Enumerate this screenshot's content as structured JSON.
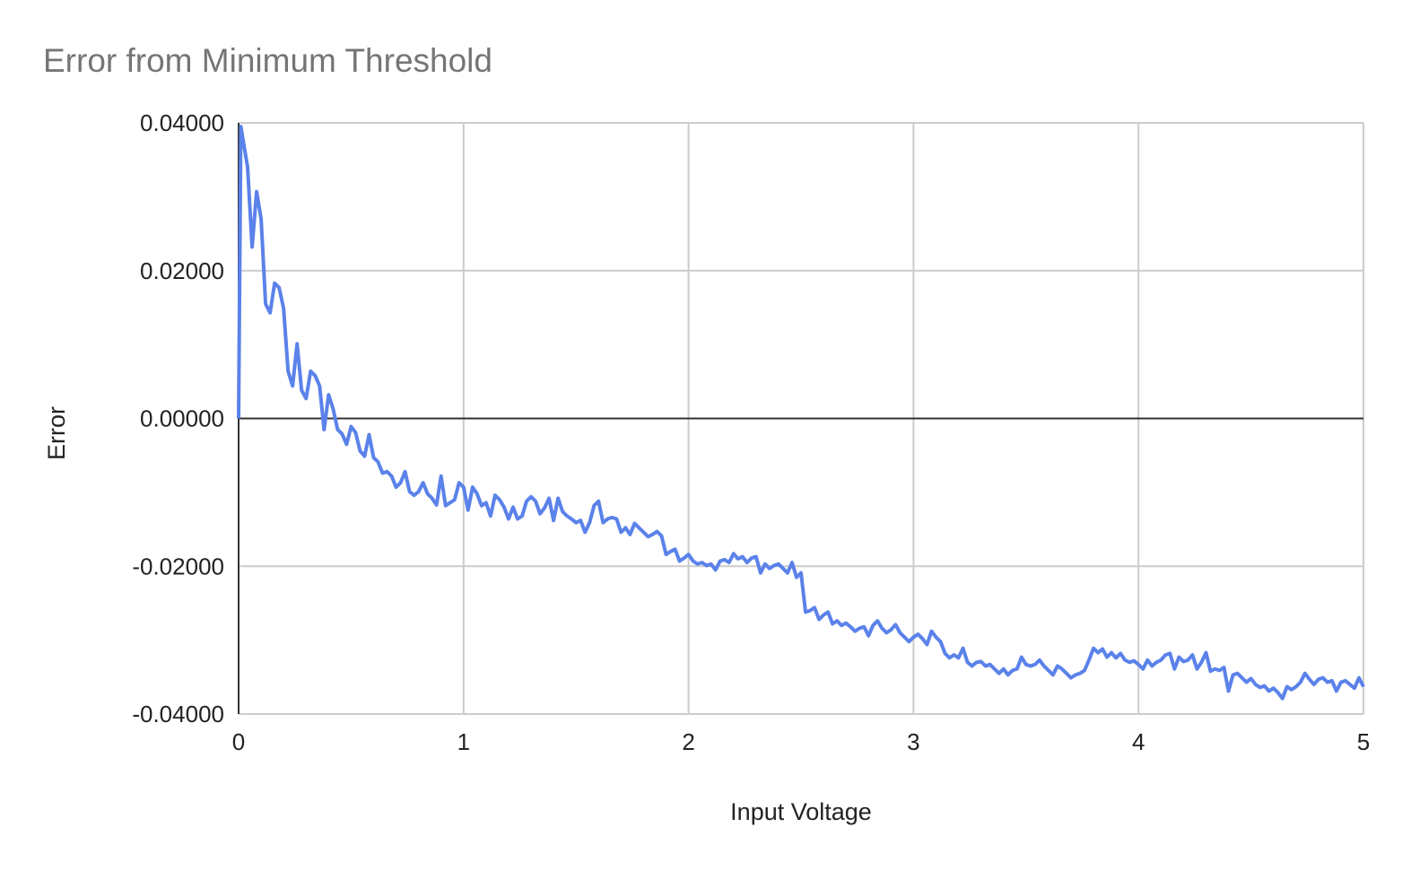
{
  "chart_data": {
    "type": "line",
    "title": "Error from Minimum Threshold",
    "x_label": "Input Voltage",
    "y_label": "Error",
    "xlim": [
      0,
      5
    ],
    "xticks": [
      0,
      1,
      2,
      3,
      4,
      5
    ],
    "ylim": [
      -0.04,
      0.04
    ],
    "yticks": [
      {
        "value": -0.04,
        "label": "-0.04000"
      },
      {
        "value": -0.02,
        "label": "-0.02000"
      },
      {
        "value": 0,
        "label": "0.00000"
      },
      {
        "value": 0.02,
        "label": "0.02000"
      },
      {
        "value": 0.04,
        "label": "0.04000"
      }
    ],
    "grid": true,
    "x": [
      0,
      0.01,
      0.04,
      0.06,
      0.08,
      0.1,
      0.12,
      0.14,
      0.16,
      0.18,
      0.2,
      0.22,
      0.24,
      0.26,
      0.28,
      0.3,
      0.32,
      0.34,
      0.36,
      0.38,
      0.4,
      0.42,
      0.44,
      0.46,
      0.48,
      0.5,
      0.52,
      0.54,
      0.56,
      0.58,
      0.6,
      0.62,
      0.64,
      0.66,
      0.68,
      0.7,
      0.72,
      0.74,
      0.76,
      0.78,
      0.8,
      0.82,
      0.84,
      0.86,
      0.88,
      0.9,
      0.92,
      0.96,
      0.98,
      1.0,
      1.02,
      1.04,
      1.06,
      1.08,
      1.1,
      1.12,
      1.14,
      1.16,
      1.18,
      1.2,
      1.22,
      1.24,
      1.26,
      1.28,
      1.3,
      1.32,
      1.34,
      1.36,
      1.38,
      1.4,
      1.42,
      1.44,
      1.46,
      1.48,
      1.5,
      1.52,
      1.54,
      1.56,
      1.58,
      1.6,
      1.62,
      1.64,
      1.66,
      1.68,
      1.7,
      1.72,
      1.74,
      1.76,
      1.78,
      1.8,
      1.82,
      1.84,
      1.86,
      1.88,
      1.9,
      1.92,
      1.94,
      1.96,
      1.98,
      2.0,
      2.02,
      2.04,
      2.06,
      2.08,
      2.1,
      2.12,
      2.14,
      2.16,
      2.18,
      2.2,
      2.22,
      2.24,
      2.26,
      2.28,
      2.3,
      2.32,
      2.34,
      2.36,
      2.38,
      2.4,
      2.42,
      2.44,
      2.46,
      2.48,
      2.5,
      2.52,
      2.54,
      2.56,
      2.58,
      2.6,
      2.62,
      2.64,
      2.66,
      2.68,
      2.7,
      2.72,
      2.74,
      2.76,
      2.78,
      2.8,
      2.82,
      2.84,
      2.86,
      2.88,
      2.9,
      2.92,
      2.94,
      2.96,
      2.98,
      3.0,
      3.02,
      3.04,
      3.06,
      3.08,
      3.1,
      3.12,
      3.14,
      3.16,
      3.18,
      3.2,
      3.22,
      3.24,
      3.26,
      3.28,
      3.3,
      3.32,
      3.34,
      3.36,
      3.38,
      3.4,
      3.42,
      3.44,
      3.46,
      3.48,
      3.5,
      3.52,
      3.54,
      3.56,
      3.58,
      3.6,
      3.62,
      3.64,
      3.66,
      3.68,
      3.7,
      3.72,
      3.74,
      3.76,
      3.78,
      3.8,
      3.82,
      3.84,
      3.86,
      3.88,
      3.9,
      3.92,
      3.94,
      3.96,
      3.98,
      4.0,
      4.02,
      4.04,
      4.06,
      4.08,
      4.1,
      4.12,
      4.14,
      4.16,
      4.18,
      4.2,
      4.22,
      4.24,
      4.26,
      4.28,
      4.3,
      4.32,
      4.34,
      4.36,
      4.38,
      4.4,
      4.42,
      4.44,
      4.46,
      4.48,
      4.5,
      4.52,
      4.54,
      4.56,
      4.58,
      4.6,
      4.62,
      4.64,
      4.66,
      4.68,
      4.7,
      4.72,
      4.74,
      4.76,
      4.78,
      4.8,
      4.82,
      4.84,
      4.86,
      4.88,
      4.9,
      4.92,
      4.94,
      4.96,
      4.98,
      5.0
    ],
    "series": [
      {
        "name": "Error",
        "color": "#5b82ea",
        "values": [
          0,
          0.0395,
          0.034,
          0.0232,
          0.0307,
          0.027,
          0.0155,
          0.0143,
          0.0183,
          0.0177,
          0.0149,
          0.0064,
          0.0044,
          0.0101,
          0.0038,
          0.0027,
          0.0064,
          0.0058,
          0.0044,
          -0.0015,
          0.0032,
          0.0013,
          -0.0015,
          -0.0021,
          -0.0035,
          -0.0011,
          -0.0019,
          -0.0044,
          -0.0051,
          -0.0022,
          -0.0053,
          -0.0059,
          -0.0074,
          -0.0072,
          -0.0078,
          -0.0093,
          -0.0087,
          -0.0072,
          -0.0099,
          -0.0104,
          -0.0099,
          -0.0087,
          -0.0102,
          -0.0108,
          -0.0117,
          -0.0078,
          -0.0118,
          -0.011,
          -0.0087,
          -0.0093,
          -0.0124,
          -0.0093,
          -0.0102,
          -0.0118,
          -0.0114,
          -0.0132,
          -0.0104,
          -0.011,
          -0.012,
          -0.0136,
          -0.012,
          -0.0136,
          -0.0132,
          -0.0112,
          -0.0106,
          -0.0112,
          -0.0129,
          -0.0121,
          -0.0108,
          -0.0138,
          -0.0108,
          -0.0126,
          -0.0132,
          -0.0136,
          -0.0141,
          -0.0138,
          -0.0154,
          -0.0141,
          -0.0118,
          -0.0112,
          -0.0141,
          -0.0136,
          -0.0134,
          -0.0136,
          -0.0154,
          -0.0148,
          -0.0157,
          -0.0142,
          -0.0148,
          -0.0154,
          -0.016,
          -0.0157,
          -0.0153,
          -0.0159,
          -0.0184,
          -0.018,
          -0.0177,
          -0.0193,
          -0.0189,
          -0.0184,
          -0.0193,
          -0.0197,
          -0.0195,
          -0.0199,
          -0.0197,
          -0.0205,
          -0.0193,
          -0.0191,
          -0.0195,
          -0.0183,
          -0.019,
          -0.0187,
          -0.0195,
          -0.0189,
          -0.0187,
          -0.0209,
          -0.0197,
          -0.0203,
          -0.0199,
          -0.0197,
          -0.0203,
          -0.0209,
          -0.0195,
          -0.0215,
          -0.0209,
          -0.0262,
          -0.026,
          -0.0256,
          -0.0272,
          -0.0266,
          -0.0262,
          -0.0278,
          -0.0274,
          -0.028,
          -0.0277,
          -0.0282,
          -0.0288,
          -0.0284,
          -0.0282,
          -0.0294,
          -0.028,
          -0.0274,
          -0.0284,
          -0.029,
          -0.0286,
          -0.0279,
          -0.029,
          -0.0296,
          -0.0302,
          -0.0296,
          -0.0292,
          -0.0298,
          -0.0306,
          -0.0288,
          -0.0296,
          -0.0302,
          -0.0318,
          -0.0324,
          -0.032,
          -0.0324,
          -0.0311,
          -0.033,
          -0.0335,
          -0.033,
          -0.0329,
          -0.0335,
          -0.0333,
          -0.0339,
          -0.0345,
          -0.0339,
          -0.0347,
          -0.0341,
          -0.0339,
          -0.0323,
          -0.0333,
          -0.0335,
          -0.0333,
          -0.0327,
          -0.0335,
          -0.0341,
          -0.0347,
          -0.0335,
          -0.0339,
          -0.0345,
          -0.0351,
          -0.0347,
          -0.0345,
          -0.0341,
          -0.0327,
          -0.0311,
          -0.0317,
          -0.0312,
          -0.0323,
          -0.0317,
          -0.0324,
          -0.0318,
          -0.0327,
          -0.033,
          -0.0328,
          -0.0333,
          -0.0339,
          -0.0327,
          -0.0335,
          -0.033,
          -0.0327,
          -0.032,
          -0.0318,
          -0.0339,
          -0.0323,
          -0.0329,
          -0.0327,
          -0.032,
          -0.0339,
          -0.033,
          -0.0317,
          -0.0342,
          -0.0339,
          -0.0341,
          -0.0337,
          -0.0369,
          -0.0347,
          -0.0345,
          -0.0351,
          -0.0357,
          -0.0352,
          -0.036,
          -0.0364,
          -0.0362,
          -0.0369,
          -0.0365,
          -0.0371,
          -0.0379,
          -0.0363,
          -0.0367,
          -0.0363,
          -0.0357,
          -0.0345,
          -0.0353,
          -0.036,
          -0.0353,
          -0.0351,
          -0.0357,
          -0.0355,
          -0.0369,
          -0.0357,
          -0.0355,
          -0.036,
          -0.0365,
          -0.0351,
          -0.0363
        ]
      }
    ]
  }
}
